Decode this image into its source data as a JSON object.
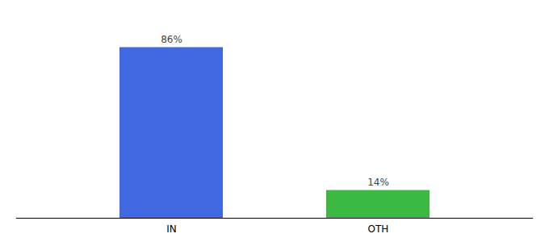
{
  "chart_data": {
    "type": "bar",
    "categories": [
      "IN",
      "OTH"
    ],
    "values": [
      86,
      14
    ],
    "value_labels": [
      "86%",
      "14%"
    ],
    "colors": [
      "#4169E1",
      "#3CB943"
    ],
    "ylim": [
      0,
      100
    ],
    "data_labels": true,
    "tick_labels": "x",
    "grid": false
  }
}
